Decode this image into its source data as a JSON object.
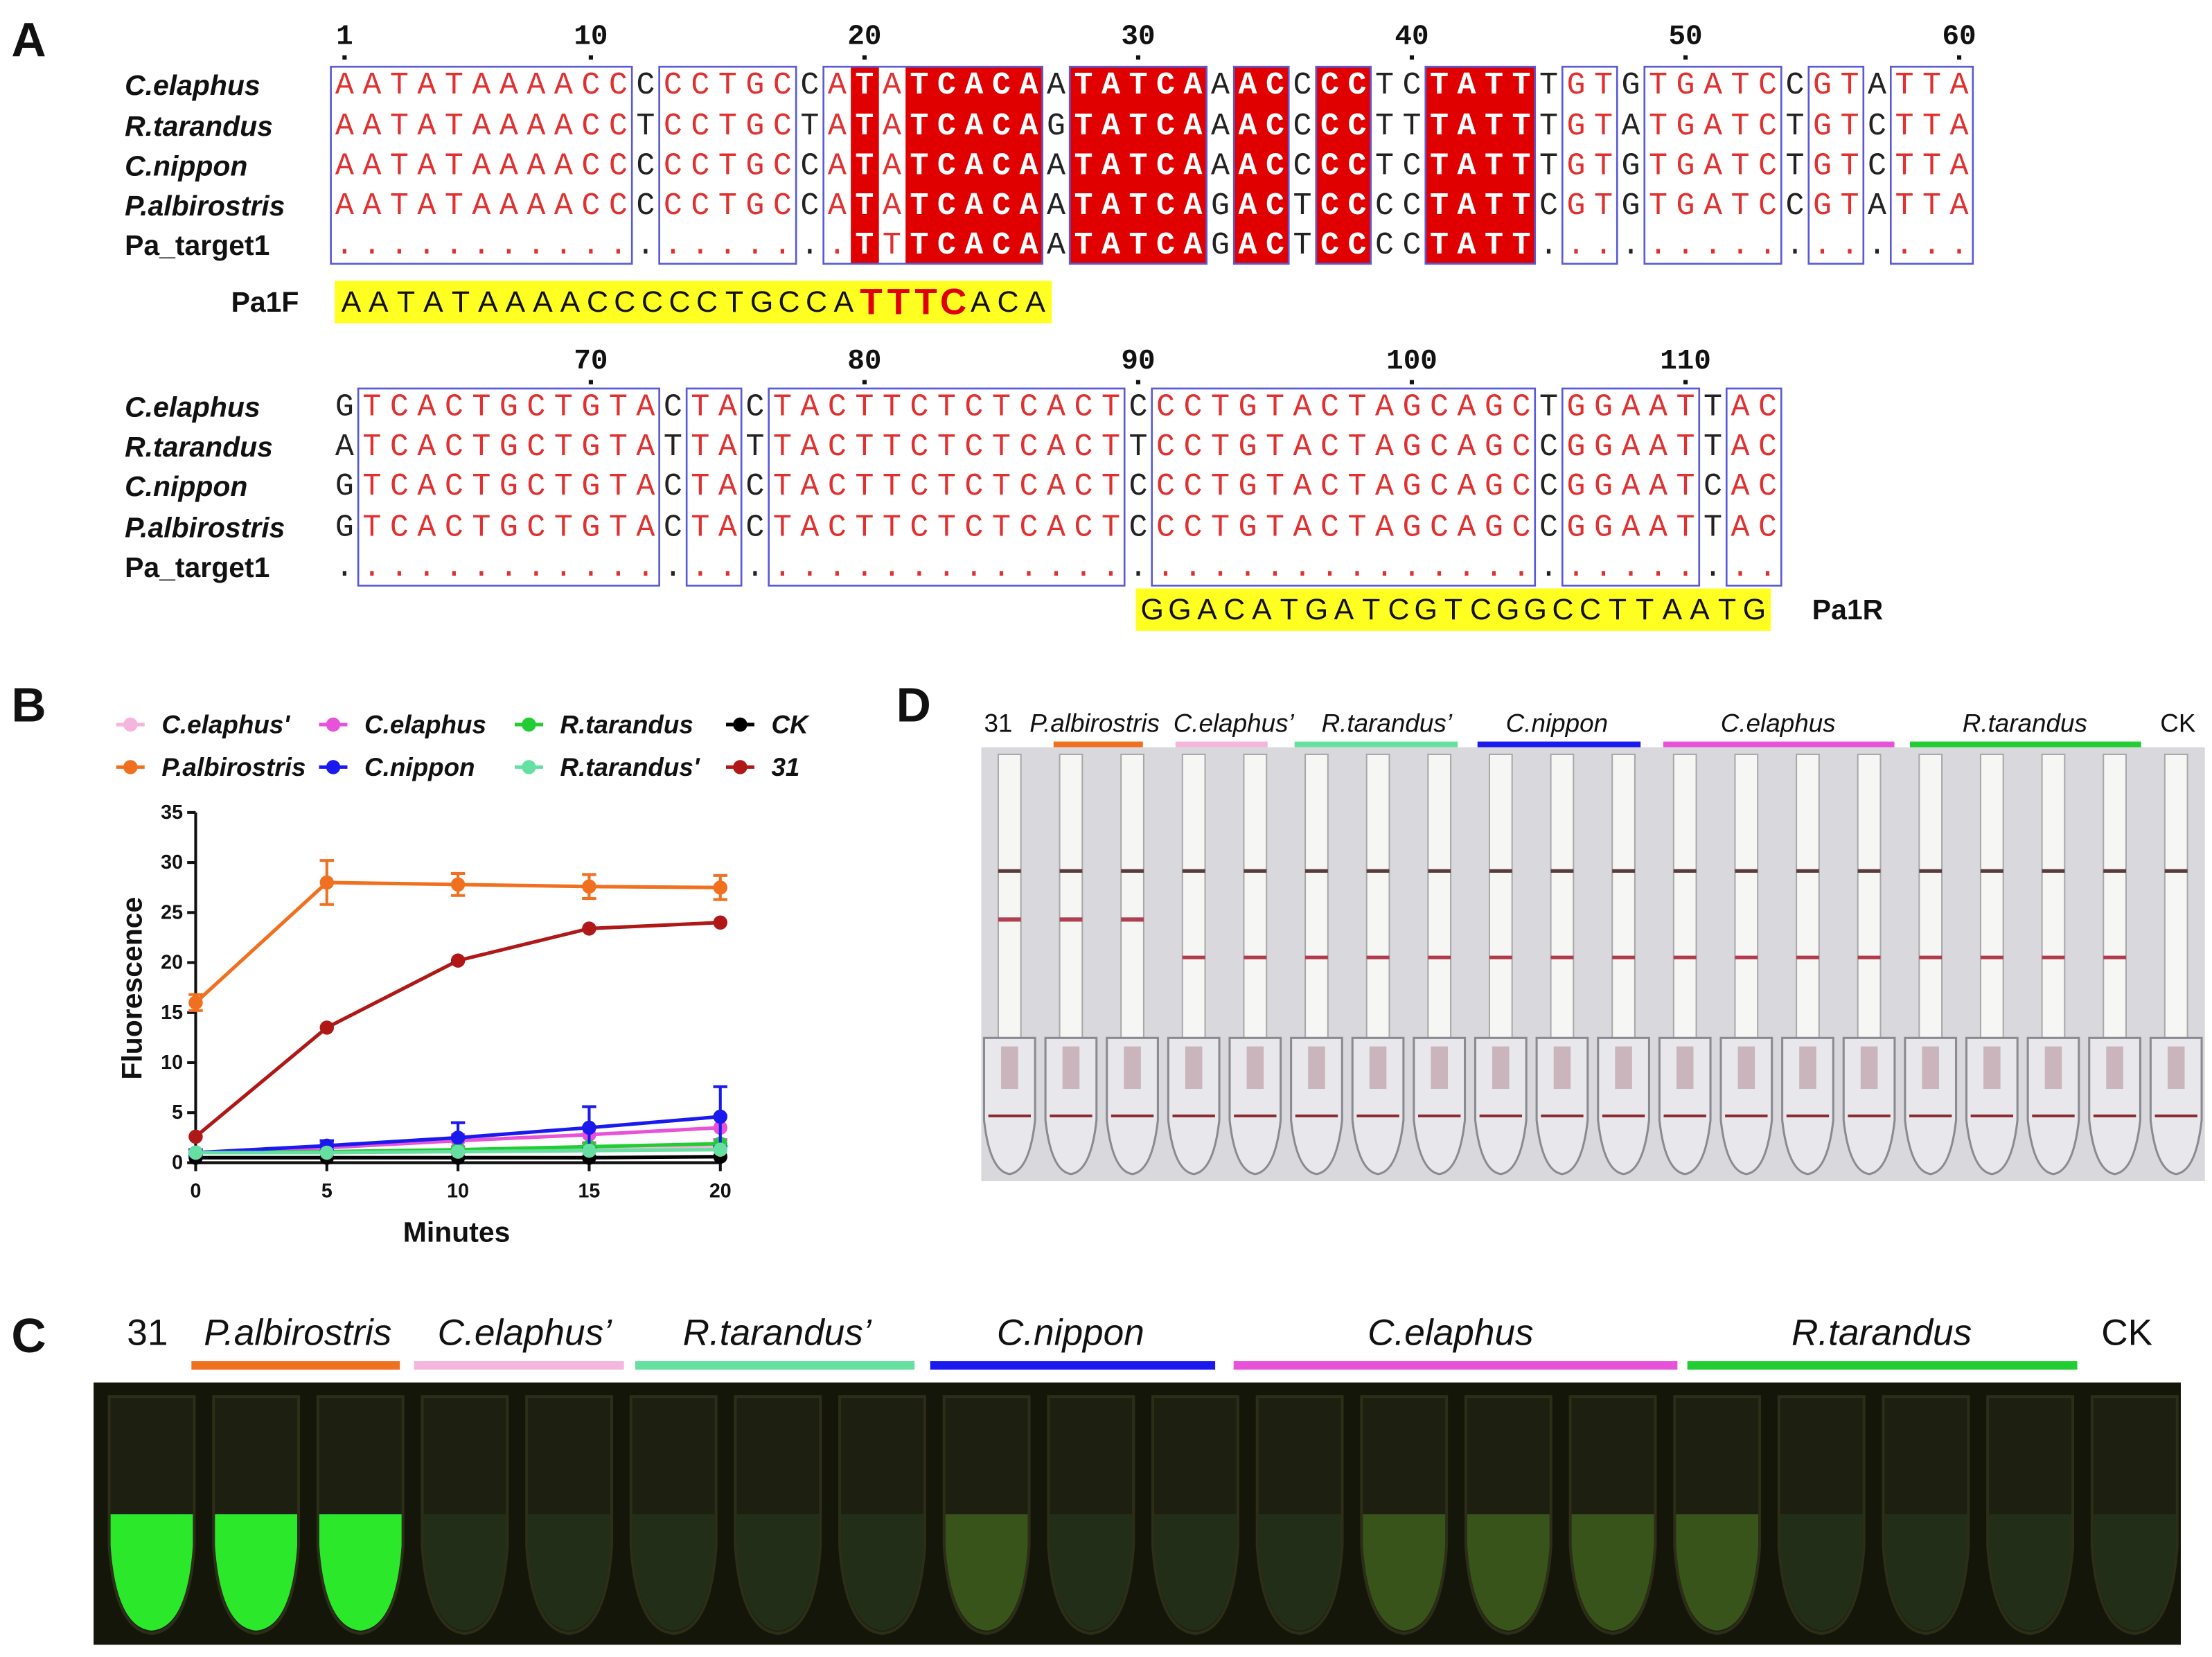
{
  "panel_labels": {
    "a": "A",
    "b": "B",
    "c": "C",
    "d": "D"
  },
  "alignment": {
    "blocks": [
      {
        "ruler": [
          1,
          10,
          20,
          30,
          40,
          50,
          60
        ],
        "rows": [
          {
            "name": "C.elaphus",
            "seq": "AATATAAAACCCCCTGCCATATCACAATATCAAACCCCTCTATTTGTGTGATCCGTATTA"
          },
          {
            "name": "R.tarandus",
            "seq": "AATATAAAACCTCCTGCTATATCACAGTATCAAACCCCTTTATTTGTATGATCTGTCTTA"
          },
          {
            "name": "C.nippon",
            "seq": "AATATAAAACCCCCTGCCATATCACAATATCAAACCCCTCTATTTGTGTGATCTGTCTTA"
          },
          {
            "name": "P.albirostris",
            "seq": "AATATAAAACCCCCTGCCATATCACAATATCAGACTCCCCTATTCGTGTGATCCGTATTA"
          },
          {
            "name": "Pa_target1",
            "seq": "...................TTTCACAATATCAGACTCCCCTATT................"
          }
        ],
        "primer": {
          "name": "Pa1F",
          "parts": [
            {
              "text": "AATATAAAACCCCCTGCCA"
            },
            {
              "text": "TTTC",
              "color": "#e00000"
            },
            {
              "text": "ACA"
            }
          ]
        }
      },
      {
        "ruler": [
          70,
          80,
          90,
          100,
          110
        ],
        "rows": [
          {
            "name": "C.elaphus",
            "seq": "GTCACTGCTGTACTACTACTTCTCTCACTCCCTGTACTAGCAGCTGGAATTAC"
          },
          {
            "name": "R.tarandus",
            "seq": "ATCACTGCTGTATTATTACTTCTCTCACTTCCTGTACTAGCAGCCGGAATTAC"
          },
          {
            "name": "C.nippon",
            "seq": "GTCACTGCTGTACTACTACTTCTCTCACTCCCTGTACTAGCAGCCGGAATCAC"
          },
          {
            "name": "P.albirostris",
            "seq": "GTCACTGCTGTACTACTACTTCTCTCACTCCCTGTACTAGCAGCCGGAATTAC"
          },
          {
            "name": "Pa_target1",
            "seq": "....................................................."
          }
        ],
        "primer": {
          "name": "Pa1R",
          "parts": [
            {
              "text": "GGACATGATCGTCGGCCTTAATG"
            }
          ]
        }
      }
    ]
  },
  "chart_data": {
    "type": "line",
    "x_label": "Minutes",
    "y_label": "Fluorescence",
    "x": [
      0,
      5,
      10,
      15,
      20
    ],
    "xlim": [
      0,
      20
    ],
    "xticks": [
      0,
      5,
      10,
      15,
      20
    ],
    "ylim": [
      0,
      35
    ],
    "yticks": [
      0,
      5,
      10,
      15,
      20,
      25,
      30,
      35
    ],
    "series": [
      {
        "name": "C.elaphus'",
        "color": "#f4b6dc",
        "values": [
          1,
          1,
          1.2,
          1.4,
          1.6
        ]
      },
      {
        "name": "C.elaphus",
        "color": "#e752d8",
        "values": [
          1,
          1.5,
          2.2,
          2.8,
          3.5
        ],
        "errors": [
          0.3,
          0.4,
          0.6,
          0.8,
          1.2
        ]
      },
      {
        "name": "R.tarandus",
        "color": "#22cc33",
        "values": [
          1,
          1.1,
          1.3,
          1.6,
          1.9
        ]
      },
      {
        "name": "CK",
        "color": "#000000",
        "values": [
          0.5,
          0.5,
          0.5,
          0.5,
          0.6
        ]
      },
      {
        "name": "P.albirostris",
        "color": "#f07020",
        "values": [
          16,
          28,
          27.8,
          27.6,
          27.5
        ],
        "errors": [
          0.8,
          2.2,
          1.1,
          1.2,
          1.2
        ]
      },
      {
        "name": "C.nippon",
        "color": "#1a1aee",
        "values": [
          1,
          1.7,
          2.5,
          3.5,
          4.6
        ],
        "errors": [
          0.3,
          0.5,
          1.5,
          2.1,
          3
        ]
      },
      {
        "name": "R.tarandus'",
        "color": "#66e0a0",
        "values": [
          1,
          1,
          1.1,
          1.2,
          1.3
        ]
      },
      {
        "name": "31",
        "color": "#b01818",
        "values": [
          2.6,
          13.5,
          20.2,
          23.4,
          24
        ]
      }
    ]
  },
  "gel_photo": {
    "groups": [
      {
        "label": "31"
      },
      {
        "label": "P.albirostris",
        "color": "#f07020"
      },
      {
        "label": "C.elaphus’",
        "color": "#f4b6dc"
      },
      {
        "label": "R.tarandus’",
        "color": "#66e0a0"
      },
      {
        "label": "C.nippon",
        "color": "#1a1aee"
      },
      {
        "label": "C.elaphus",
        "color": "#e752d8"
      },
      {
        "label": "R.tarandus",
        "color": "#22cc33"
      },
      {
        "label": "CK"
      }
    ]
  },
  "strip_photo": {
    "groups": [
      {
        "label": "31"
      },
      {
        "label": "P.albirostris",
        "color": "#f07020"
      },
      {
        "label": "C.elaphus’",
        "color": "#f4b6dc"
      },
      {
        "label": "R.tarandus’",
        "color": "#66e0a0"
      },
      {
        "label": "C.nippon",
        "color": "#1a1aee"
      },
      {
        "label": "C.elaphus",
        "color": "#e752d8"
      },
      {
        "label": "R.tarandus",
        "color": "#22cc33"
      },
      {
        "label": "CK"
      }
    ]
  }
}
